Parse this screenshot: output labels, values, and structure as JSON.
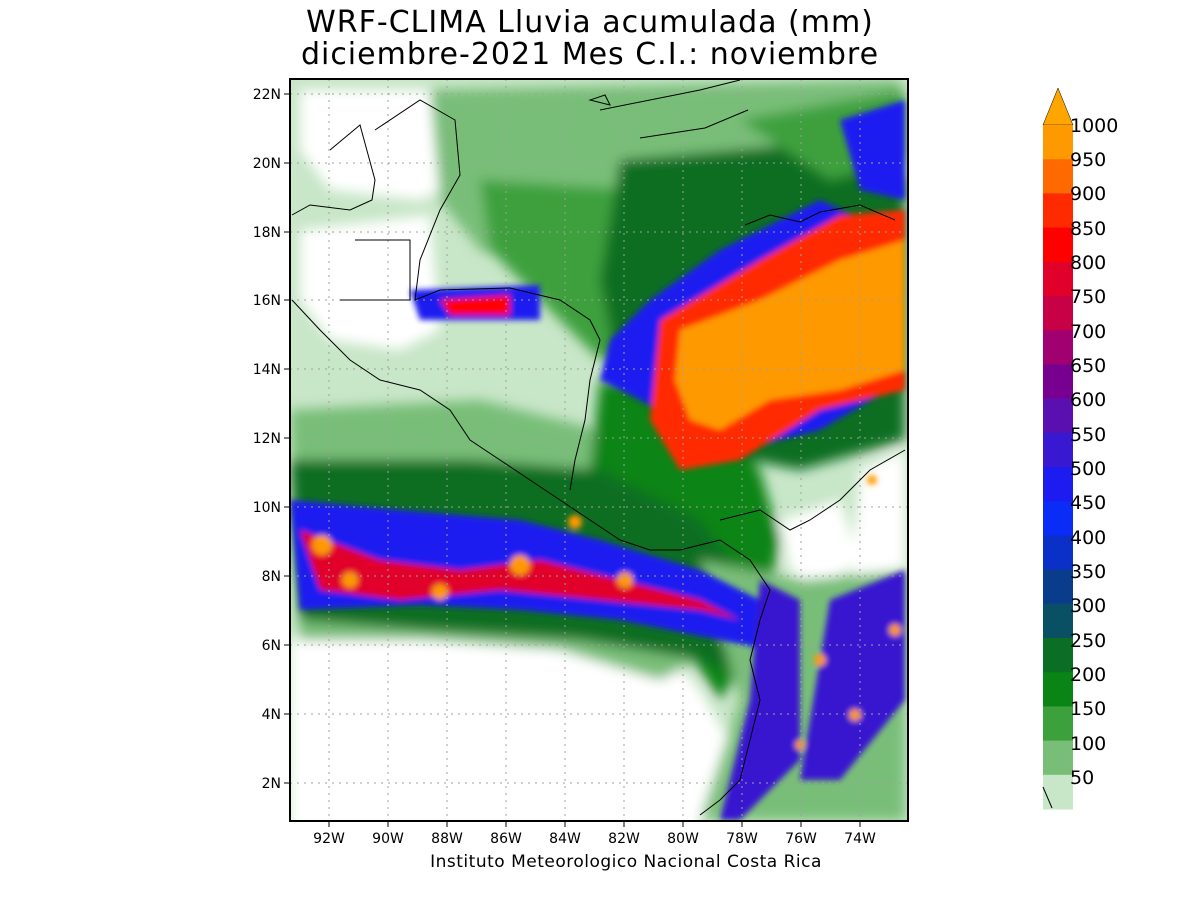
{
  "title_line1": "WRF-CLIMA Lluvia acumulada (mm)",
  "title_line2": "diciembre-2021 Mes C.I.: noviembre",
  "credit": "Instituto Meteorologico Nacional Costa Rica",
  "map": {
    "lon_range": [
      -93.3,
      -72.3
    ],
    "lat_range": [
      1.0,
      22.4
    ],
    "lat_ticks": [
      "22N",
      "20N",
      "18N",
      "16N",
      "14N",
      "12N",
      "10N",
      "8N",
      "6N",
      "4N",
      "2N"
    ],
    "lon_ticks": [
      "92W",
      "90W",
      "88W",
      "86W",
      "84W",
      "82W",
      "80W",
      "78W",
      "76W",
      "74W"
    ],
    "grid": true
  },
  "colorbar": {
    "levels": [
      "1000",
      "950",
      "900",
      "850",
      "800",
      "750",
      "700",
      "650",
      "600",
      "550",
      "500",
      "450",
      "400",
      "350",
      "300",
      "250",
      "200",
      "150",
      "100",
      "50"
    ],
    "colors": [
      "#ff9900",
      "#ff6a00",
      "#ff2a00",
      "#ff0000",
      "#e0002a",
      "#c80046",
      "#a00070",
      "#780090",
      "#5a10b0",
      "#3818d0",
      "#1c1cf0",
      "#0a2cf6",
      "#0a30c8",
      "#0a3c8c",
      "#0a5064",
      "#0a6e24",
      "#0a8414",
      "#3ca03c",
      "#78be78",
      "#c8e6c8"
    ],
    "arrow_color": "#ffa500"
  }
}
